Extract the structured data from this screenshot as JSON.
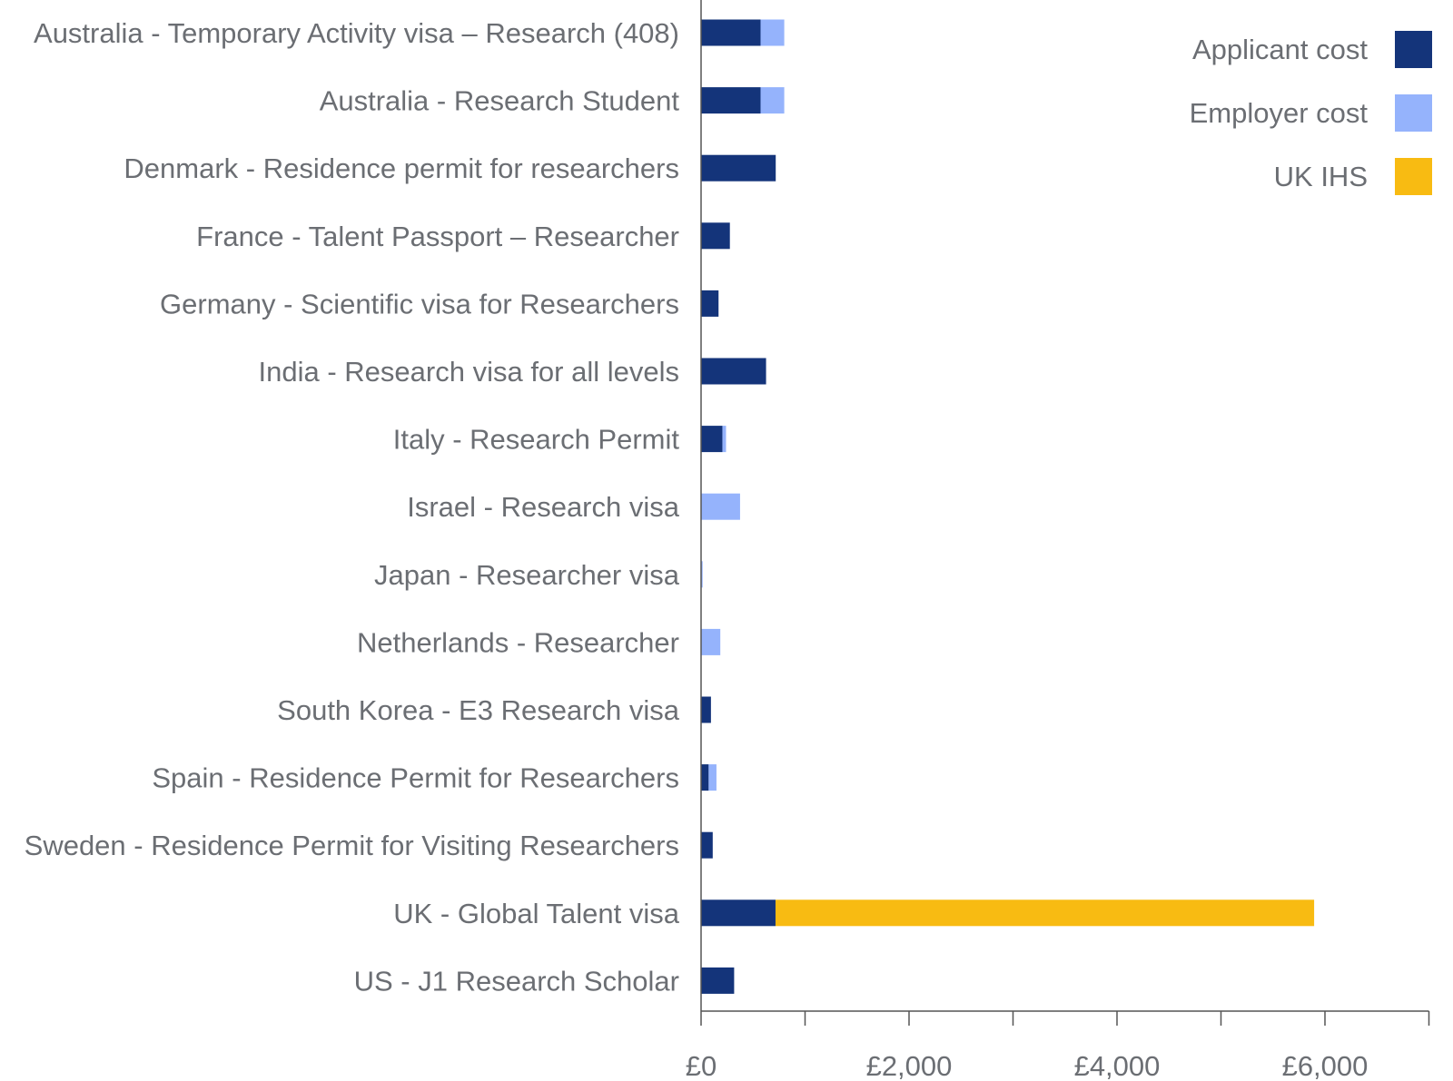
{
  "chart_data": {
    "type": "bar",
    "orientation": "horizontal",
    "stacked": true,
    "categories": [
      "Australia - Temporary Activity visa – Research (408)",
      "Australia - Research Student",
      "Denmark - Residence permit for researchers",
      "France - Talent Passport – Researcher",
      "Germany - Scientific visa for Researchers",
      "India - Research visa for all levels",
      "Italy - Research Permit",
      "Israel - Research visa",
      "Japan - Researcher visa",
      "Netherlands - Researcher",
      "South Korea - E3 Research visa",
      "Spain - Residence Permit for Researchers",
      "Sweden - Residence Permit for Visiting Researchers",
      "UK - Global Talent visa",
      "US - J1 Research Scholar"
    ],
    "series": [
      {
        "name": "Applicant cost",
        "color": "#14347a",
        "values": [
          572,
          572,
          718,
          277,
          168,
          625,
          205,
          0,
          0,
          0,
          95,
          73,
          112,
          716,
          318
        ]
      },
      {
        "name": "Employer cost",
        "color": "#95b3fc",
        "values": [
          228,
          228,
          0,
          0,
          0,
          0,
          35,
          375,
          15,
          185,
          0,
          75,
          0,
          0,
          0
        ]
      },
      {
        "name": "UK IHS",
        "color": "#f8bb12",
        "values": [
          0,
          0,
          0,
          0,
          0,
          0,
          0,
          0,
          0,
          0,
          0,
          0,
          0,
          5180,
          0
        ]
      }
    ],
    "xlim": [
      0,
      7000
    ],
    "x_ticks": [
      0,
      1000,
      2000,
      3000,
      4000,
      5000,
      6000,
      7000
    ],
    "x_tick_labels": [
      "£0",
      "",
      "£2,000",
      "",
      "£4,000",
      "",
      "£6,000",
      ""
    ],
    "title": "",
    "xlabel": "",
    "ylabel": "",
    "grid": false,
    "legend_position": "top-right"
  }
}
